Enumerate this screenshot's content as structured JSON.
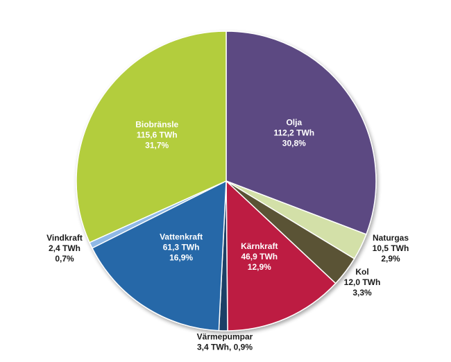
{
  "chart_data": {
    "type": "pie",
    "title": "",
    "unit": "TWh",
    "slices": [
      {
        "name": "Olja",
        "value": 112.2,
        "value_label": "112,2 TWh",
        "percent_label": "30,8%",
        "color": "#5b4a82"
      },
      {
        "name": "Naturgas",
        "value": 10.5,
        "value_label": "10,5 TWh",
        "percent_label": "2,9%",
        "color": "#d3e0a8"
      },
      {
        "name": "Kol",
        "value": 12.0,
        "value_label": "12,0 TWh",
        "percent_label": "3,3%",
        "color": "#5a5234"
      },
      {
        "name": "Kärnkraft",
        "value": 46.9,
        "value_label": "46,9 TWh",
        "percent_label": "12,9%",
        "color": "#bd1e42"
      },
      {
        "name": "Värmepumpar",
        "value": 3.4,
        "value_label": "3,4 TWh, 0,9%",
        "percent_label": "",
        "color": "#1f3f66"
      },
      {
        "name": "Vattenkraft",
        "value": 61.3,
        "value_label": "61,3 TWh",
        "percent_label": "16,9%",
        "color": "#2567a8"
      },
      {
        "name": "Vindkraft",
        "value": 2.4,
        "value_label": "2,4 TWh",
        "percent_label": "0,7%",
        "color": "#8fb9e6"
      },
      {
        "name": "Biobränsle",
        "value": 115.6,
        "value_label": "115,6 TWh",
        "percent_label": "31,7%",
        "color": "#b3cd3e"
      }
    ]
  }
}
